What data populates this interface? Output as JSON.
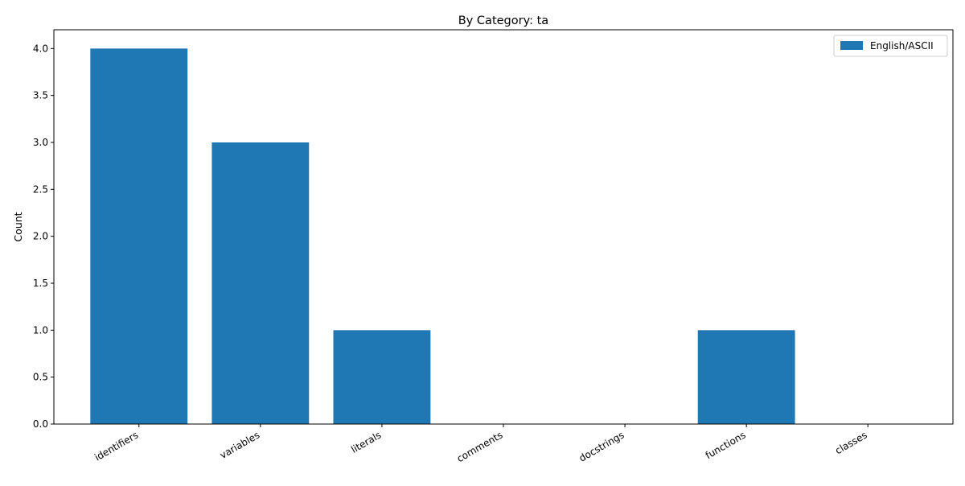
{
  "chart_data": {
    "type": "bar",
    "title": "By Category: ta",
    "xlabel": "",
    "ylabel": "Count",
    "categories": [
      "identifiers",
      "variables",
      "literals",
      "comments",
      "docstrings",
      "functions",
      "classes"
    ],
    "series": [
      {
        "name": "English/ASCII",
        "values": [
          4,
          3,
          1,
          0,
          0,
          1,
          0
        ],
        "color": "#1f77b4"
      }
    ],
    "ylim": [
      0,
      4.2
    ],
    "yticks": [
      "0.0",
      "0.5",
      "1.0",
      "1.5",
      "2.0",
      "2.5",
      "3.0",
      "3.5",
      "4.0"
    ],
    "grid": false,
    "legend_position": "top-right"
  }
}
